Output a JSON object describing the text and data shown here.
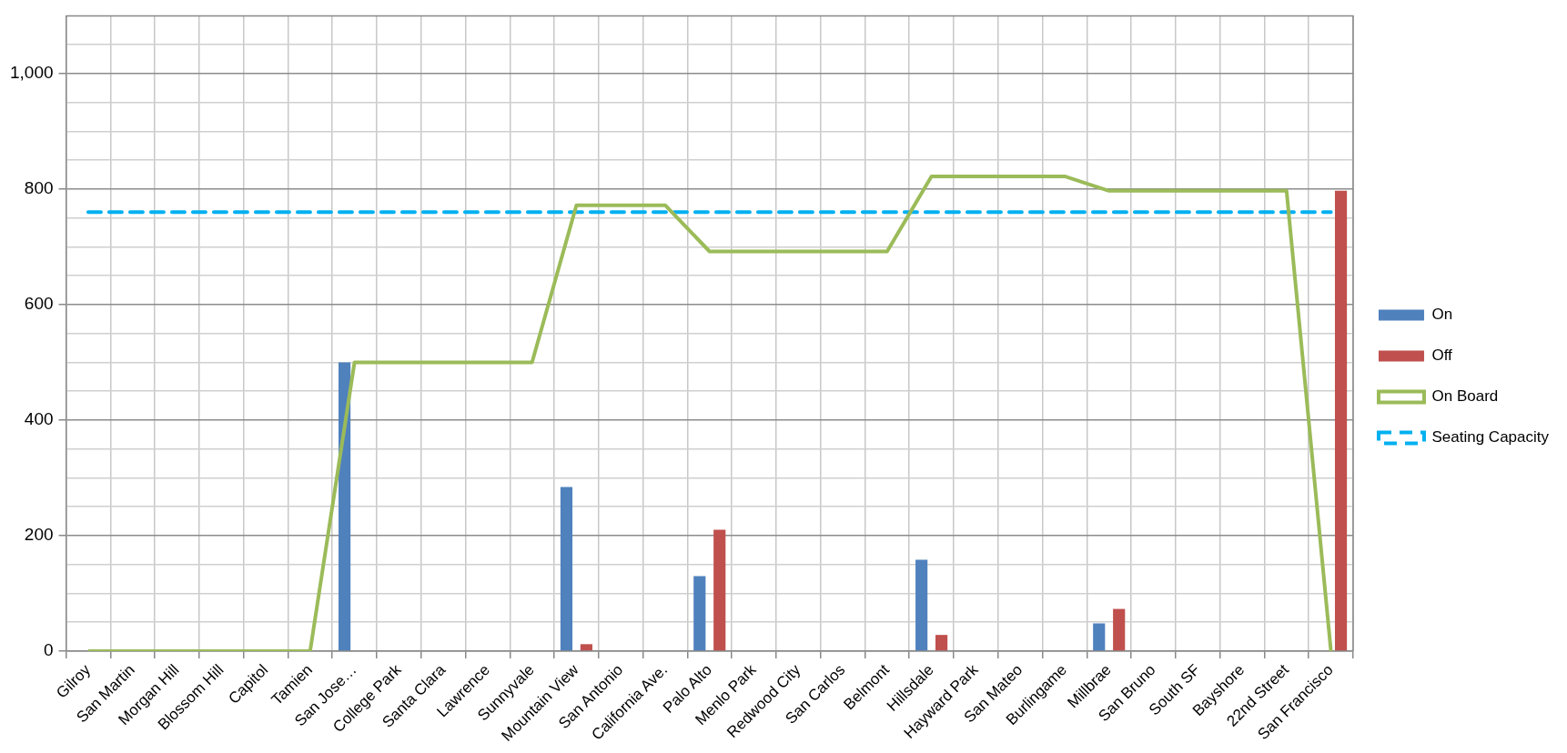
{
  "chart_data": {
    "type": "bar",
    "categories": [
      "Gilroy",
      "San Martin",
      "Morgan Hill",
      "Blossom Hill",
      "Capitol",
      "Tamien",
      "San Jose…",
      "College Park",
      "Santa Clara",
      "Lawrence",
      "Sunnyvale",
      "Mountain View",
      "San Antonio",
      "California Ave.",
      "Palo Alto",
      "Menlo Park",
      "Redwood City",
      "San Carlos",
      "Belmont",
      "Hillsdale",
      "Hayward Park",
      "San Mateo",
      "Burlingame",
      "Millbrae",
      "San Bruno",
      "South SF",
      "Bayshore",
      "22nd Street",
      "San Francisco"
    ],
    "series": [
      {
        "name": "On",
        "color": "#4f81bd",
        "values": [
          0,
          0,
          0,
          0,
          0,
          0,
          500,
          0,
          0,
          0,
          0,
          284,
          0,
          0,
          130,
          0,
          0,
          0,
          0,
          158,
          0,
          0,
          0,
          48,
          0,
          0,
          0,
          0,
          0
        ]
      },
      {
        "name": "Off",
        "color": "#c0504d",
        "values": [
          0,
          0,
          0,
          0,
          0,
          0,
          0,
          0,
          0,
          0,
          0,
          12,
          0,
          0,
          210,
          0,
          0,
          0,
          0,
          28,
          0,
          0,
          0,
          73,
          0,
          0,
          0,
          0,
          797
        ]
      },
      {
        "name": "On Board",
        "type": "line",
        "color": "#9bbb59",
        "line_style": "solid",
        "values": [
          0,
          0,
          0,
          0,
          0,
          0,
          500,
          500,
          500,
          500,
          500,
          772,
          772,
          772,
          692,
          692,
          692,
          692,
          692,
          822,
          822,
          822,
          822,
          797,
          797,
          797,
          797,
          797,
          0
        ]
      },
      {
        "name": "Seating Capacity",
        "type": "line",
        "color": "#00b0f0",
        "line_style": "dashed",
        "values": [
          760,
          760,
          760,
          760,
          760,
          760,
          760,
          760,
          760,
          760,
          760,
          760,
          760,
          760,
          760,
          760,
          760,
          760,
          760,
          760,
          760,
          760,
          760,
          760,
          760,
          760,
          760,
          760,
          760
        ]
      }
    ],
    "ylim": [
      0,
      1100
    ],
    "yticks": [
      0,
      {
        "value": 50,
        "label": null
      },
      {
        "value": 100,
        "label": null
      },
      {
        "value": 150,
        "label": null
      },
      200,
      {
        "value": 250,
        "label": null
      },
      {
        "value": 300,
        "label": null
      },
      {
        "value": 350,
        "label": null
      },
      400,
      {
        "value": 450,
        "label": null
      },
      {
        "value": 500,
        "label": null
      },
      {
        "value": 550,
        "label": null
      },
      600,
      {
        "value": 650,
        "label": null
      },
      {
        "value": 700,
        "label": null
      },
      {
        "value": 750,
        "label": null
      },
      800,
      {
        "value": 850,
        "label": null
      },
      {
        "value": 900,
        "label": null
      },
      {
        "value": 950,
        "label": null
      },
      {
        "value": 1000,
        "label": "1,000"
      },
      {
        "value": 1050,
        "label": null
      }
    ],
    "grid": true,
    "legend": "right",
    "marker": "none"
  }
}
